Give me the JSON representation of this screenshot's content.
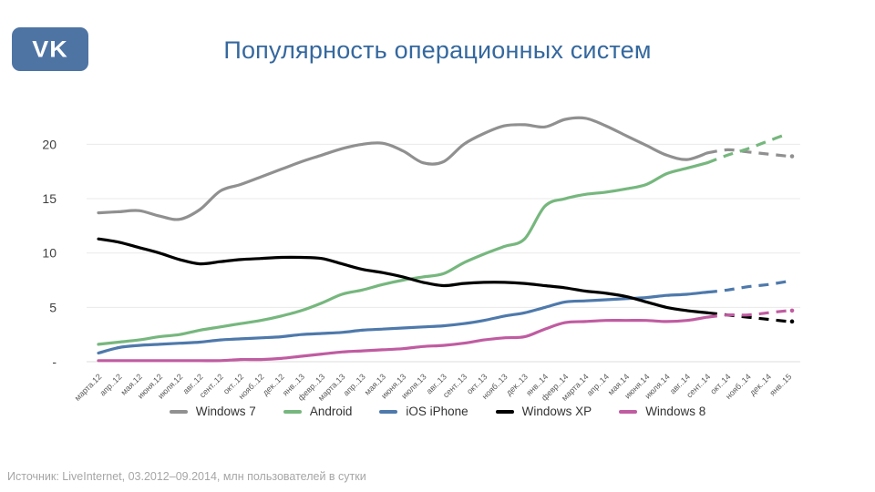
{
  "header": {
    "title": "Популярность операционных систем",
    "logo_text": "VK"
  },
  "footer": {
    "source_note": "Источник: LiveInternet, 03.2012–09.2014, млн пользователей в сутки"
  },
  "colors": {
    "title": "#35689e",
    "logo_bg": "#4e74a4",
    "logo_text": "#ffffff",
    "gridline": "#e9e9e9",
    "baseline": "#dcdcdc",
    "y_tick_label": "#3f3f3f",
    "x_tick_label": "#595959",
    "legend_text": "#333333",
    "source_text": "#a6a6a6"
  },
  "chart_data": {
    "type": "line",
    "title": "Популярность операционных систем",
    "ylabel": "млн пользователей в сутки",
    "ylim": [
      0,
      24
    ],
    "grid": "horizontal",
    "legend_position": "bottom",
    "smoothed": true,
    "forecast_start_index": 30,
    "y_ticks": [
      {
        "value": 20,
        "label": "20"
      },
      {
        "value": 15,
        "label": "15"
      },
      {
        "value": 10,
        "label": "10"
      },
      {
        "value": 5,
        "label": "5"
      },
      {
        "value": 0,
        "label": "-"
      }
    ],
    "categories": [
      "марта.12",
      "апр..12",
      "мая.12",
      "июня.12",
      "июля.12",
      "авг..12",
      "сент..12",
      "окт..12",
      "нояб..12",
      "дек..12",
      "янв..13",
      "февр..13",
      "марта.13",
      "апр..13",
      "мая.13",
      "июня.13",
      "июля.13",
      "авг..13",
      "сент..13",
      "окт..13",
      "нояб..13",
      "дек..13",
      "янв..14",
      "февр..14",
      "марта.14",
      "апр..14",
      "мая.14",
      "июня.14",
      "июля.14",
      "авг..14",
      "сент..14",
      "окт..14",
      "нояб..14",
      "дек..14",
      "янв..15"
    ],
    "series": [
      {
        "name": "Windows 7",
        "color": "#909090",
        "end_dot": true,
        "values": [
          13.7,
          13.8,
          13.9,
          13.4,
          13.1,
          14.0,
          15.7,
          16.3,
          17.0,
          17.7,
          18.4,
          19.0,
          19.6,
          20.0,
          20.1,
          19.4,
          18.3,
          18.4,
          20.0,
          21.0,
          21.7,
          21.8,
          21.6,
          22.3,
          22.4,
          21.7,
          20.8,
          19.9,
          19.0,
          18.6,
          19.2,
          19.5,
          19.3,
          19.1,
          18.9
        ]
      },
      {
        "name": "Android",
        "color": "#76b77e",
        "end_dot": false,
        "values": [
          1.6,
          1.8,
          2.0,
          2.3,
          2.5,
          2.9,
          3.2,
          3.5,
          3.8,
          4.2,
          4.7,
          5.4,
          6.2,
          6.6,
          7.1,
          7.5,
          7.8,
          8.1,
          9.1,
          9.9,
          10.6,
          11.3,
          14.3,
          15.0,
          15.4,
          15.6,
          15.9,
          16.3,
          17.3,
          17.8,
          18.3,
          19.0,
          19.6,
          20.3,
          21.0
        ]
      },
      {
        "name": "iOS iPhone",
        "color": "#4e79ab",
        "end_dot": false,
        "values": [
          0.8,
          1.3,
          1.5,
          1.6,
          1.7,
          1.8,
          2.0,
          2.1,
          2.2,
          2.3,
          2.5,
          2.6,
          2.7,
          2.9,
          3.0,
          3.1,
          3.2,
          3.3,
          3.5,
          3.8,
          4.2,
          4.5,
          5.0,
          5.5,
          5.6,
          5.7,
          5.8,
          5.9,
          6.1,
          6.2,
          6.4,
          6.6,
          6.9,
          7.1,
          7.4
        ]
      },
      {
        "name": "Windows XP",
        "color": "#000000",
        "end_dot": true,
        "values": [
          11.3,
          11.0,
          10.5,
          10.0,
          9.4,
          9.0,
          9.2,
          9.4,
          9.5,
          9.6,
          9.6,
          9.5,
          9.0,
          8.5,
          8.2,
          7.8,
          7.3,
          7.0,
          7.2,
          7.3,
          7.3,
          7.2,
          7.0,
          6.8,
          6.5,
          6.3,
          6.0,
          5.5,
          5.0,
          4.7,
          4.5,
          4.3,
          4.1,
          3.9,
          3.7
        ]
      },
      {
        "name": "Windows 8",
        "color": "#c05ca1",
        "end_dot": true,
        "values": [
          0.1,
          0.1,
          0.1,
          0.1,
          0.1,
          0.1,
          0.1,
          0.2,
          0.2,
          0.3,
          0.5,
          0.7,
          0.9,
          1.0,
          1.1,
          1.2,
          1.4,
          1.5,
          1.7,
          2.0,
          2.2,
          2.3,
          3.0,
          3.6,
          3.7,
          3.8,
          3.8,
          3.8,
          3.7,
          3.8,
          4.1,
          4.3,
          4.3,
          4.5,
          4.7
        ]
      }
    ]
  }
}
